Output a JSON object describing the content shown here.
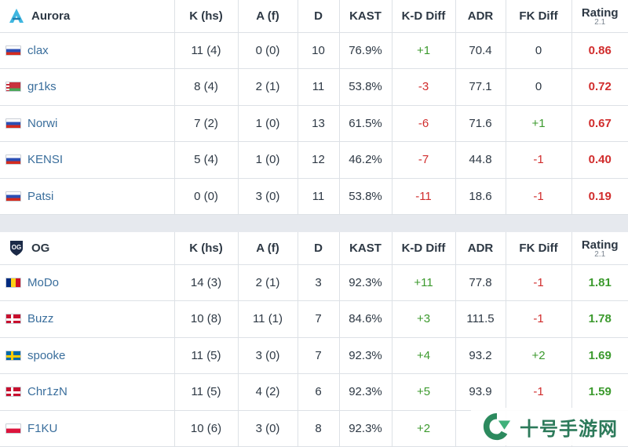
{
  "columns": {
    "k": "K (hs)",
    "a": "A (f)",
    "d": "D",
    "kast": "KAST",
    "kd": "K-D Diff",
    "adr": "ADR",
    "fk": "FK Diff",
    "rating": "Rating",
    "rating_sub": "2.1"
  },
  "teams": [
    {
      "name": "Aurora",
      "logo_icon": "aurora-logo",
      "players": [
        {
          "flag": "russia",
          "name": "clax",
          "k": "11 (4)",
          "a": "0 (0)",
          "d": "10",
          "kast": "76.9%",
          "kd": "+1",
          "adr": "70.4",
          "fk": "0",
          "rating": "0.86"
        },
        {
          "flag": "belarus",
          "name": "gr1ks",
          "k": "8 (4)",
          "a": "2 (1)",
          "d": "11",
          "kast": "53.8%",
          "kd": "-3",
          "adr": "77.1",
          "fk": "0",
          "rating": "0.72"
        },
        {
          "flag": "russia",
          "name": "Norwi",
          "k": "7 (2)",
          "a": "1 (0)",
          "d": "13",
          "kast": "61.5%",
          "kd": "-6",
          "adr": "71.6",
          "fk": "+1",
          "rating": "0.67"
        },
        {
          "flag": "russia",
          "name": "KENSI",
          "k": "5 (4)",
          "a": "1 (0)",
          "d": "12",
          "kast": "46.2%",
          "kd": "-7",
          "adr": "44.8",
          "fk": "-1",
          "rating": "0.40"
        },
        {
          "flag": "russia",
          "name": "Patsi",
          "k": "0 (0)",
          "a": "3 (0)",
          "d": "11",
          "kast": "53.8%",
          "kd": "-11",
          "adr": "18.6",
          "fk": "-1",
          "rating": "0.19"
        }
      ]
    },
    {
      "name": "OG",
      "logo_icon": "og-logo",
      "players": [
        {
          "flag": "romania",
          "name": "MoDo",
          "k": "14 (3)",
          "a": "2 (1)",
          "d": "3",
          "kast": "92.3%",
          "kd": "+11",
          "adr": "77.8",
          "fk": "-1",
          "rating": "1.81"
        },
        {
          "flag": "denmark",
          "name": "Buzz",
          "k": "10 (8)",
          "a": "11 (1)",
          "d": "7",
          "kast": "84.6%",
          "kd": "+3",
          "adr": "111.5",
          "fk": "-1",
          "rating": "1.78"
        },
        {
          "flag": "sweden",
          "name": "spooke",
          "k": "11 (5)",
          "a": "3 (0)",
          "d": "7",
          "kast": "92.3%",
          "kd": "+4",
          "adr": "93.2",
          "fk": "+2",
          "rating": "1.69"
        },
        {
          "flag": "denmark",
          "name": "Chr1zN",
          "k": "11 (5)",
          "a": "4 (2)",
          "d": "6",
          "kast": "92.3%",
          "kd": "+5",
          "adr": "93.9",
          "fk": "-1",
          "rating": "1.59"
        },
        {
          "flag": "poland",
          "name": "F1KU",
          "k": "10 (6)",
          "a": "3 (0)",
          "d": "8",
          "kast": "92.3%",
          "kd": "+2",
          "adr": "",
          "fk": "",
          "rating": ""
        }
      ]
    }
  ],
  "watermark": {
    "text": "十号手游网"
  },
  "colors": {
    "positive": "#3c9a2e",
    "negative": "#d12d2d",
    "link": "#3a6e9c"
  }
}
